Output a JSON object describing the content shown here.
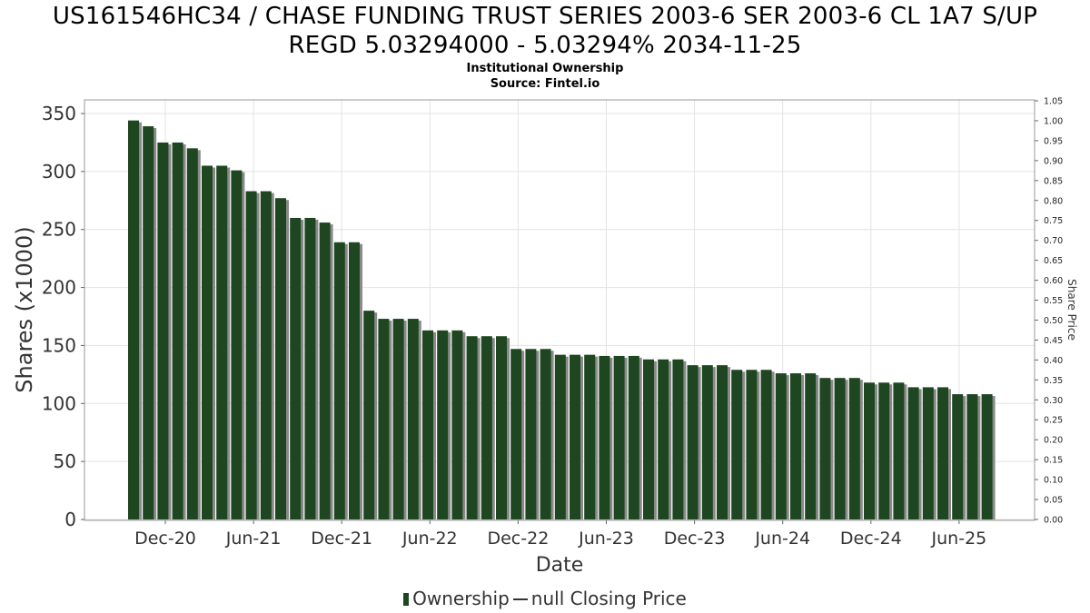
{
  "chart_data": {
    "type": "bar",
    "title_line1": "US161546HC34 / CHASE FUNDING TRUST SERIES 2003-6 SER 2003-6 CL 1A7 S/UP",
    "title_line2": "REGD 5.03294000 - 5.03294% 2034-11-25",
    "subtitle": "Institutional Ownership",
    "source": "Source: Fintel.io",
    "xlabel": "Date",
    "ylabel": "Shares (x1000)",
    "y2label": "Share Price",
    "ylim": [
      0,
      360
    ],
    "y2lim": [
      0,
      1.05
    ],
    "yticks": [
      0,
      50,
      100,
      150,
      200,
      250,
      300,
      350
    ],
    "y2ticks": [
      "0.00",
      "0.05",
      "0.10",
      "0.15",
      "0.20",
      "0.25",
      "0.30",
      "0.35",
      "0.40",
      "0.45",
      "0.50",
      "0.55",
      "0.60",
      "0.65",
      "0.70",
      "0.75",
      "0.80",
      "0.85",
      "0.90",
      "0.95",
      "1.00",
      "1.05"
    ],
    "xtick_labels": [
      "Dec-20",
      "Jun-21",
      "Dec-21",
      "Jun-22",
      "Dec-22",
      "Jun-23",
      "Dec-23",
      "Jun-24",
      "Dec-24",
      "Jun-25"
    ],
    "grid": true,
    "legend_position": "bottom",
    "series": [
      {
        "name": "Ownership",
        "color": "#1e4620",
        "values": [
          344,
          339,
          325,
          325,
          320,
          305,
          305,
          301,
          283,
          283,
          277,
          260,
          260,
          256,
          239,
          239,
          180,
          173,
          173,
          173,
          163,
          163,
          163,
          158,
          158,
          158,
          147,
          147,
          147,
          142,
          142,
          142,
          141,
          141,
          141,
          138,
          138,
          138,
          133,
          133,
          133,
          129,
          129,
          129,
          126,
          126,
          126,
          122,
          122,
          122,
          118,
          118,
          118,
          114,
          114,
          114,
          108,
          108,
          108
        ]
      },
      {
        "name": "null Closing Price",
        "color": "#333333",
        "values": []
      }
    ]
  }
}
